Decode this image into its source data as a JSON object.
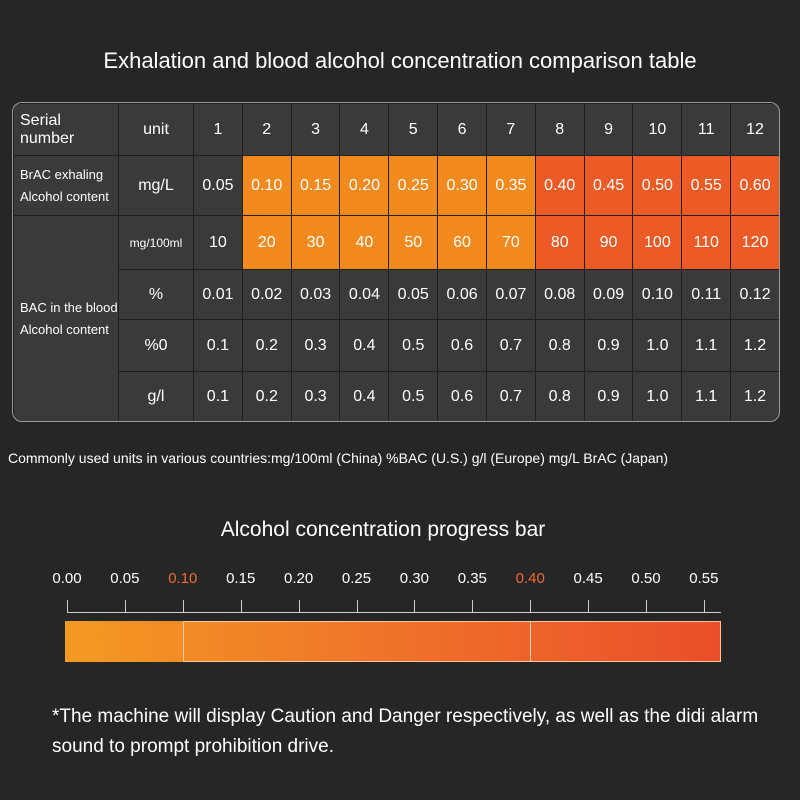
{
  "title": "Exhalation and blood alcohol concentration comparison table",
  "table": {
    "header_serial": "Serial number",
    "header_unit": "unit",
    "serials": [
      "1",
      "2",
      "3",
      "4",
      "5",
      "6",
      "7",
      "8",
      "9",
      "10",
      "11",
      "12"
    ],
    "brac_label_line1": "BrAC exhaling",
    "brac_label_line2": "Alcohol content",
    "bac_label_line1": "BAC in the blood",
    "bac_label_line2": "Alcohol content",
    "rows": [
      {
        "unit": "mg/L",
        "values": [
          "0.05",
          "0.10",
          "0.15",
          "0.20",
          "0.25",
          "0.30",
          "0.35",
          "0.40",
          "0.45",
          "0.50",
          "0.55",
          "0.60"
        ]
      },
      {
        "unit": "mg/100ml",
        "values": [
          "10",
          "20",
          "30",
          "40",
          "50",
          "60",
          "70",
          "80",
          "90",
          "100",
          "110",
          "120"
        ]
      },
      {
        "unit": "%",
        "values": [
          "0.01",
          "0.02",
          "0.03",
          "0.04",
          "0.05",
          "0.06",
          "0.07",
          "0.08",
          "0.09",
          "0.10",
          "0.11",
          "0.12"
        ]
      },
      {
        "unit": "%0",
        "values": [
          "0.1",
          "0.2",
          "0.3",
          "0.4",
          "0.5",
          "0.6",
          "0.7",
          "0.8",
          "0.9",
          "1.0",
          "1.1",
          "1.2"
        ]
      },
      {
        "unit": "g/l",
        "values": [
          "0.1",
          "0.2",
          "0.3",
          "0.4",
          "0.5",
          "0.6",
          "0.7",
          "0.8",
          "0.9",
          "1.0",
          "1.1",
          "1.2"
        ]
      }
    ],
    "colors": {
      "caution": "#f28a1d",
      "danger": "#ec5a26",
      "cell": "#3a3a3a"
    }
  },
  "note": "Commonly used units in various countries:mg/100ml (China) %BAC (U.S.) g/l (Europe) mg/L BrAC (Japan)",
  "progress": {
    "title": "Alcohol concentration progress bar",
    "scale_labels": [
      "0.00",
      "0.05",
      "0.10",
      "0.15",
      "0.20",
      "0.25",
      "0.30",
      "0.35",
      "0.40",
      "0.45",
      "0.50",
      "0.55"
    ],
    "caution_threshold": 0.1,
    "danger_threshold": 0.4,
    "highlight_color": "#ee6a2a"
  },
  "footer": "*The machine will display Caution and Danger respectively, as well as the didi alarm sound to prompt prohibition drive."
}
